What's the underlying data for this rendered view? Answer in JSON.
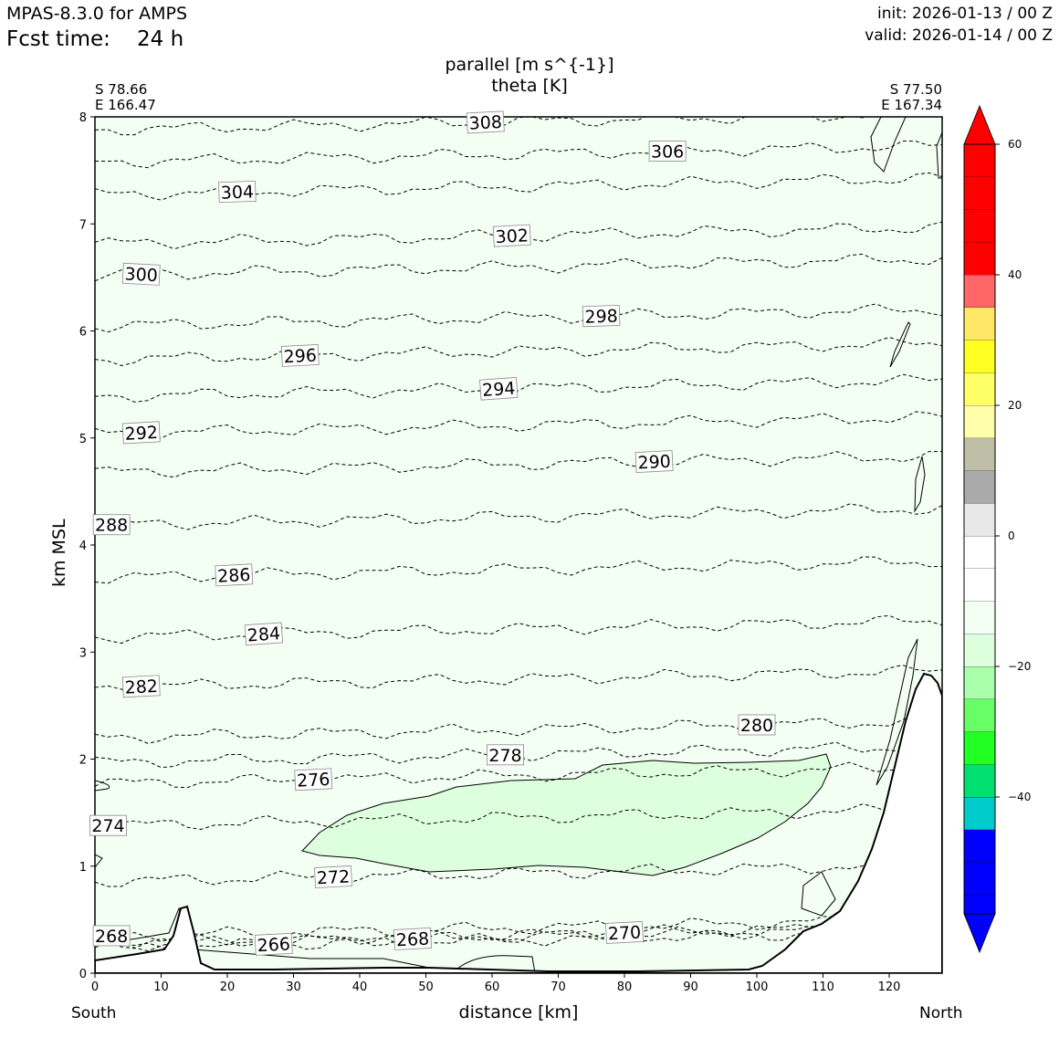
{
  "header": {
    "model": "MPAS-8.3.0 for AMPS",
    "fcst_label": "Fcst time:",
    "fcst_value": "24 h",
    "init": "init: 2026-01-13 / 00 Z",
    "valid": "valid: 2026-01-14 / 00 Z"
  },
  "chart_data": {
    "type": "cross-section contour",
    "title_line1": "parallel [m s^{-1}]",
    "title_line2": "theta [K]",
    "xlabel": "distance [km]",
    "ylabel": "km MSL",
    "xlim": [
      0,
      128
    ],
    "ylim": [
      0,
      8
    ],
    "xticks": [
      "0",
      "10",
      "20",
      "30",
      "40",
      "50",
      "60",
      "70",
      "80",
      "90",
      "100",
      "110",
      "120"
    ],
    "yticks": [
      "0",
      "1",
      "2",
      "3",
      "4",
      "5",
      "6",
      "7",
      "8"
    ],
    "endpoints": {
      "left": {
        "lat": "S 78.66",
        "lon": "E 166.47",
        "dir": "South"
      },
      "right": {
        "lat": "S 77.50",
        "lon": "E 167.34",
        "dir": "North"
      }
    },
    "theta_contours": [
      {
        "label": "266",
        "x": 27,
        "y": 0.27,
        "rot": -3
      },
      {
        "label": "268",
        "x": 2.5,
        "y": 0.35,
        "rot": 0
      },
      {
        "label": "268",
        "x": 48,
        "y": 0.32,
        "rot": -3
      },
      {
        "label": "270",
        "x": 80,
        "y": 0.38,
        "rot": -3
      },
      {
        "label": "272",
        "x": 36,
        "y": 0.9,
        "rot": -3
      },
      {
        "label": "274",
        "x": 2,
        "y": 1.38,
        "rot": 0
      },
      {
        "label": "276",
        "x": 33,
        "y": 1.81,
        "rot": -3
      },
      {
        "label": "278",
        "x": 62,
        "y": 2.04,
        "rot": 0
      },
      {
        "label": "280",
        "x": 100,
        "y": 2.32,
        "rot": 0
      },
      {
        "label": "282",
        "x": 7,
        "y": 2.68,
        "rot": -3
      },
      {
        "label": "284",
        "x": 25.5,
        "y": 3.17,
        "rot": -4
      },
      {
        "label": "286",
        "x": 21,
        "y": 3.72,
        "rot": -3
      },
      {
        "label": "288",
        "x": 2.5,
        "y": 4.19,
        "rot": 0
      },
      {
        "label": "290",
        "x": 84.5,
        "y": 4.78,
        "rot": -3
      },
      {
        "label": "292",
        "x": 7,
        "y": 5.05,
        "rot": -3
      },
      {
        "label": "294",
        "x": 61,
        "y": 5.46,
        "rot": -4
      },
      {
        "label": "296",
        "x": 31,
        "y": 5.77,
        "rot": -3
      },
      {
        "label": "298",
        "x": 76.5,
        "y": 6.14,
        "rot": -2
      },
      {
        "label": "300",
        "x": 7,
        "y": 6.53,
        "rot": 3
      },
      {
        "label": "302",
        "x": 63,
        "y": 6.89,
        "rot": -3
      },
      {
        "label": "304",
        "x": 21.5,
        "y": 7.3,
        "rot": -2
      },
      {
        "label": "306",
        "x": 86.5,
        "y": 7.68,
        "rot": 0
      },
      {
        "label": "308",
        "x": 59,
        "y": 7.95,
        "rot": -3
      }
    ],
    "colorbar": {
      "levels": [
        -60,
        -55,
        -50,
        -45,
        -40,
        -35,
        -30,
        -25,
        -20,
        -15,
        -10,
        -5,
        0,
        5,
        10,
        15,
        20,
        25,
        30,
        35,
        40,
        45,
        50,
        55,
        60
      ],
      "colors": [
        "#0000ff",
        "#0000ff",
        "#0000ff",
        "#00cccc",
        "#00e070",
        "#22ff22",
        "#66ff66",
        "#aaffaa",
        "#ddffdd",
        "#f2fff2",
        "#ffffff",
        "#ffffff",
        "#e8e8e8",
        "#aaaaaa",
        "#bfbfa8",
        "#ffffaa",
        "#ffff66",
        "#ffff22",
        "#ffe866",
        "#ff6666",
        "#ff0000",
        "#ff0000"
      ],
      "extend_low": "#0000ff",
      "extend_high": "#ff0000",
      "tick_labels": [
        "60",
        "40",
        "20",
        "0",
        "−20",
        "−40"
      ],
      "tick_values": [
        60,
        40,
        20,
        0,
        -20,
        -40
      ]
    },
    "fill_colors": {
      "background": "#f2fff2",
      "jet_core": "#ddffdd",
      "terrain": "#ffffff"
    }
  }
}
